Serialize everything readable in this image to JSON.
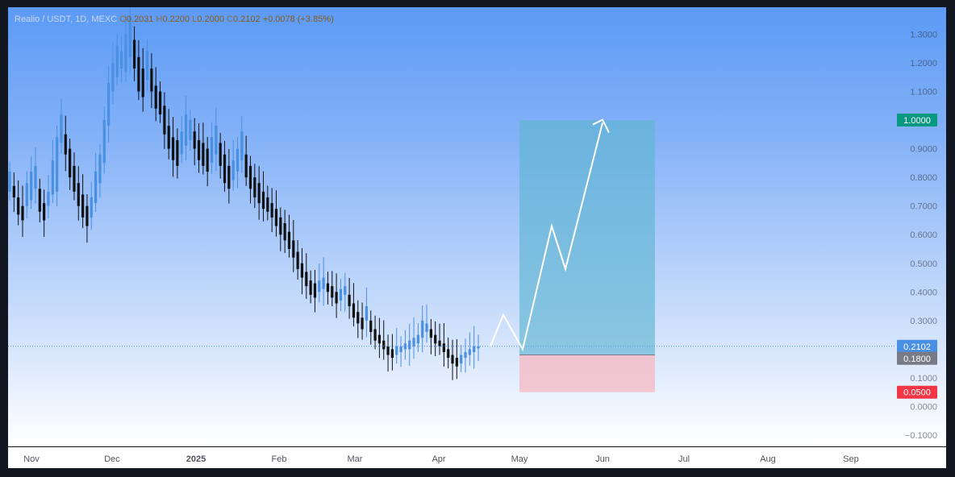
{
  "legend": {
    "symbol": "Realio / USDT, 1D, MEXC",
    "open_key": "O",
    "open": "0.2031",
    "high_key": "H",
    "high": "0.2200",
    "low_key": "L",
    "low": "0.2000",
    "close_key": "C",
    "close": "0.2102",
    "change": "+0.0078 (+3.85%)"
  },
  "chart_data": {
    "type": "candlestick",
    "symbol": "Realio / USDT",
    "interval": "1D",
    "exchange": "MEXC",
    "ylim": [
      -0.1,
      1.3
    ],
    "y_ticks": [
      "1.3000",
      "1.2000",
      "1.1000",
      "1.0000",
      "0.9000",
      "0.8000",
      "0.7000",
      "0.6000",
      "0.5000",
      "0.4000",
      "0.3000",
      "0.2000",
      "0.1000",
      "0.0000",
      "−0.1000"
    ],
    "x_ticks": [
      "Nov",
      "Dec",
      "2025",
      "Feb",
      "Mar",
      "Apr",
      "May",
      "Jun",
      "Jul",
      "Aug",
      "Sep"
    ],
    "last_price": 0.2102,
    "price_path": [
      [
        0.75,
        0.82
      ],
      [
        0.73,
        0.77
      ],
      [
        0.67,
        0.73
      ],
      [
        0.65,
        0.7
      ],
      [
        0.7,
        0.78
      ],
      [
        0.72,
        0.82
      ],
      [
        0.76,
        0.84
      ],
      [
        0.68,
        0.76
      ],
      [
        0.65,
        0.71
      ],
      [
        0.7,
        0.75
      ],
      [
        0.74,
        0.86
      ],
      [
        0.75,
        0.94
      ],
      [
        0.92,
        1.02
      ],
      [
        0.88,
        0.95
      ],
      [
        0.8,
        0.9
      ],
      [
        0.75,
        0.84
      ],
      [
        0.7,
        0.78
      ],
      [
        0.66,
        0.74
      ],
      [
        0.63,
        0.7
      ],
      [
        0.66,
        0.73
      ],
      [
        0.71,
        0.82
      ],
      [
        0.78,
        0.88
      ],
      [
        0.85,
        1.0
      ],
      [
        0.98,
        1.13
      ],
      [
        1.1,
        1.2
      ],
      [
        1.15,
        1.26
      ],
      [
        1.18,
        1.24
      ],
      [
        1.17,
        1.3
      ],
      [
        1.22,
        1.36
      ],
      [
        1.18,
        1.28
      ],
      [
        1.1,
        1.22
      ],
      [
        1.08,
        1.18
      ],
      [
        1.14,
        1.24
      ],
      [
        1.1,
        1.18
      ],
      [
        1.04,
        1.12
      ],
      [
        1.02,
        1.1
      ],
      [
        0.95,
        1.05
      ],
      [
        0.9,
        0.98
      ],
      [
        0.86,
        0.94
      ],
      [
        0.84,
        0.93
      ],
      [
        0.88,
        0.96
      ],
      [
        0.91,
        1.02
      ],
      [
        0.93,
        1.0
      ],
      [
        0.9,
        0.96
      ],
      [
        0.86,
        0.93
      ],
      [
        0.84,
        0.92
      ],
      [
        0.82,
        0.9
      ],
      [
        0.85,
        0.94
      ],
      [
        0.88,
        0.98
      ],
      [
        0.84,
        0.92
      ],
      [
        0.78,
        0.88
      ],
      [
        0.76,
        0.84
      ],
      [
        0.79,
        0.86
      ],
      [
        0.82,
        0.9
      ],
      [
        0.86,
        0.96
      ],
      [
        0.8,
        0.88
      ],
      [
        0.76,
        0.84
      ],
      [
        0.73,
        0.8
      ],
      [
        0.71,
        0.78
      ],
      [
        0.69,
        0.75
      ],
      [
        0.68,
        0.73
      ],
      [
        0.66,
        0.71
      ],
      [
        0.63,
        0.69
      ],
      [
        0.6,
        0.66
      ],
      [
        0.58,
        0.64
      ],
      [
        0.55,
        0.61
      ],
      [
        0.52,
        0.58
      ],
      [
        0.48,
        0.54
      ],
      [
        0.45,
        0.5
      ],
      [
        0.42,
        0.47
      ],
      [
        0.39,
        0.44
      ],
      [
        0.38,
        0.43
      ],
      [
        0.4,
        0.44
      ],
      [
        0.41,
        0.45
      ],
      [
        0.4,
        0.43
      ],
      [
        0.38,
        0.42
      ],
      [
        0.36,
        0.4
      ],
      [
        0.37,
        0.41
      ],
      [
        0.39,
        0.42
      ],
      [
        0.35,
        0.39
      ],
      [
        0.31,
        0.36
      ],
      [
        0.29,
        0.33
      ],
      [
        0.27,
        0.31
      ],
      [
        0.3,
        0.35
      ],
      [
        0.26,
        0.3
      ],
      [
        0.23,
        0.27
      ],
      [
        0.22,
        0.25
      ],
      [
        0.2,
        0.23
      ],
      [
        0.18,
        0.21
      ],
      [
        0.17,
        0.2
      ],
      [
        0.18,
        0.21
      ],
      [
        0.19,
        0.21
      ],
      [
        0.2,
        0.22
      ],
      [
        0.2,
        0.23
      ],
      [
        0.21,
        0.24
      ],
      [
        0.22,
        0.25
      ],
      [
        0.24,
        0.3
      ],
      [
        0.26,
        0.29
      ],
      [
        0.24,
        0.27
      ],
      [
        0.22,
        0.25
      ],
      [
        0.21,
        0.23
      ],
      [
        0.19,
        0.22
      ],
      [
        0.17,
        0.2
      ],
      [
        0.15,
        0.18
      ],
      [
        0.14,
        0.17
      ],
      [
        0.15,
        0.18
      ],
      [
        0.17,
        0.19
      ],
      [
        0.18,
        0.2
      ],
      [
        0.19,
        0.21
      ],
      [
        0.2031,
        0.2102
      ]
    ],
    "position": {
      "take_profit": 1.0,
      "entry": 0.18,
      "stop_loss": 0.05,
      "take_profit_label": "1.0000",
      "entry_label": "0.1800",
      "stop_loss_label": "0.0500",
      "current_label": "0.2102"
    },
    "projection_path": [
      0.21,
      0.32,
      0.2,
      0.63,
      0.48,
      0.99
    ],
    "colors": {
      "up_candle": "#4a90e2",
      "down_candle": "#111111",
      "profit_zone": "#5fb6d3",
      "loss_zone": "#f2c1cc",
      "take_profit_badge": "#089981",
      "stop_loss_badge": "#f23645",
      "entry_badge": "#787b86",
      "price_badge": "#4a90e2"
    }
  }
}
